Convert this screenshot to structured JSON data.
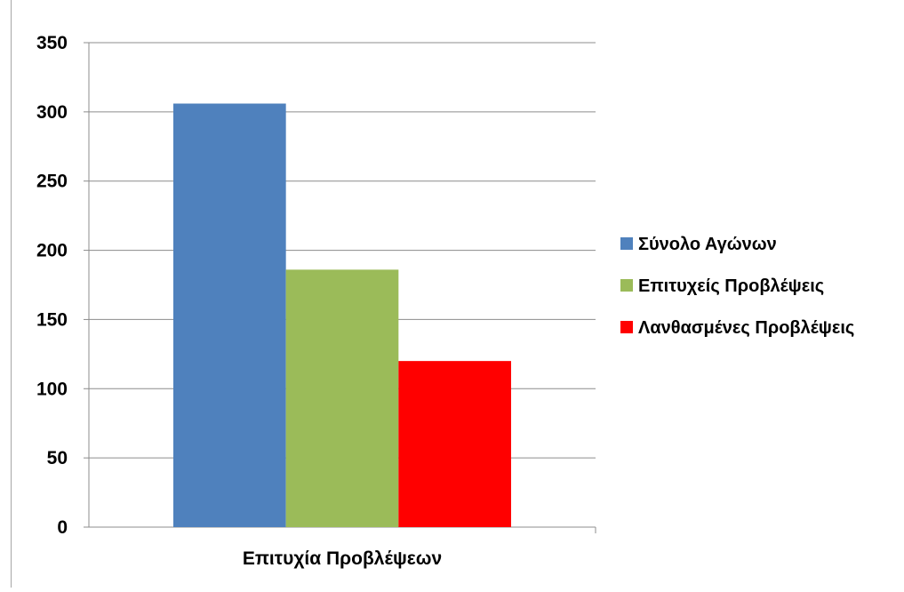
{
  "chart_data": {
    "type": "bar",
    "title": "",
    "xlabel": "",
    "ylabel": "",
    "categories": [
      "Επιτυχία Προβλέψεων"
    ],
    "series": [
      {
        "name": "Σύνολο Αγώνων",
        "values": [
          306
        ],
        "color": "#4f81bd"
      },
      {
        "name": "Επιτυχείς Προβλέψεις",
        "values": [
          186
        ],
        "color": "#9bbb59"
      },
      {
        "name": "Λανθασμένες Προβλέψεις",
        "values": [
          120
        ],
        "color": "#ff0000"
      }
    ],
    "ylim": [
      0,
      350
    ],
    "yticks": [
      0,
      50,
      100,
      150,
      200,
      250,
      300,
      350
    ],
    "grid": true,
    "legend_position": "right"
  }
}
